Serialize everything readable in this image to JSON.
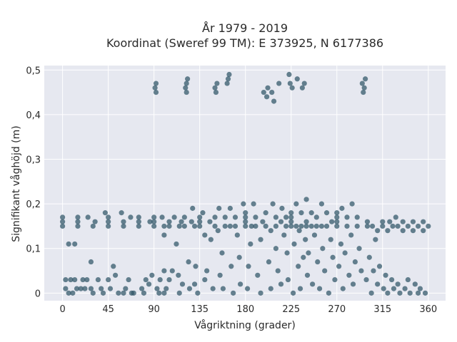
{
  "chart_data": {
    "type": "scatter",
    "title": "År 1979 - 2019",
    "subtitle": "Koordinat (Sweref 99 TM): E 373925, N 6177386",
    "xlabel": "Vågriktning (grader)",
    "ylabel": "Signifikant våghöjd (m)",
    "xlim": [
      -18,
      377
    ],
    "ylim": [
      -0.017,
      0.51
    ],
    "xticks": [
      0,
      45,
      90,
      135,
      180,
      225,
      270,
      315,
      360
    ],
    "xtick_labels": [
      "0",
      "45",
      "90",
      "135",
      "180",
      "225",
      "270",
      "315",
      "360"
    ],
    "yticks": [
      0,
      0.1,
      0.2,
      0.3,
      0.4,
      0.5
    ],
    "ytick_labels": [
      "0",
      "0,1",
      "0,2",
      "0,3",
      "0,4",
      "0,5"
    ],
    "grid": true,
    "marker_color": "#2f5467",
    "background_color": "#e6e8f0",
    "series": [
      {
        "points": [
          [
            0,
            0.15
          ],
          [
            0,
            0.16
          ],
          [
            0,
            0.17
          ],
          [
            3,
            0.01
          ],
          [
            3,
            0.03
          ],
          [
            6,
            0.0
          ],
          [
            6,
            0.11
          ],
          [
            8,
            0.03
          ],
          [
            10,
            0.0
          ],
          [
            12,
            0.03
          ],
          [
            12,
            0.11
          ],
          [
            14,
            0.01
          ],
          [
            15,
            0.15
          ],
          [
            15,
            0.16
          ],
          [
            15,
            0.17
          ],
          [
            18,
            0.01
          ],
          [
            20,
            0.03
          ],
          [
            22,
            0.01
          ],
          [
            24,
            0.03
          ],
          [
            25,
            0.17
          ],
          [
            28,
            0.07
          ],
          [
            28,
            0.01
          ],
          [
            30,
            0.0
          ],
          [
            30,
            0.15
          ],
          [
            32,
            0.16
          ],
          [
            35,
            0.03
          ],
          [
            38,
            0.01
          ],
          [
            40,
            0.0
          ],
          [
            42,
            0.18
          ],
          [
            45,
            0.03
          ],
          [
            45,
            0.15
          ],
          [
            45,
            0.16
          ],
          [
            45,
            0.17
          ],
          [
            47,
            0.01
          ],
          [
            50,
            0.06
          ],
          [
            52,
            0.04
          ],
          [
            55,
            0.0
          ],
          [
            58,
            0.18
          ],
          [
            60,
            0.15
          ],
          [
            60,
            0.16
          ],
          [
            60,
            0.0
          ],
          [
            62,
            0.01
          ],
          [
            65,
            0.03
          ],
          [
            67,
            0.17
          ],
          [
            68,
            0.0
          ],
          [
            70,
            0.0
          ],
          [
            75,
            0.15
          ],
          [
            75,
            0.16
          ],
          [
            75,
            0.17
          ],
          [
            78,
            0.01
          ],
          [
            80,
            0.0
          ],
          [
            82,
            0.03
          ],
          [
            85,
            0.02
          ],
          [
            86,
            0.16
          ],
          [
            88,
            0.04
          ],
          [
            90,
            0.15
          ],
          [
            90,
            0.16
          ],
          [
            90,
            0.17
          ],
          [
            91,
            0.46
          ],
          [
            92,
            0.45
          ],
          [
            92,
            0.47
          ],
          [
            93,
            0.01
          ],
          [
            95,
            0.0
          ],
          [
            96,
            0.03
          ],
          [
            98,
            0.17
          ],
          [
            100,
            0.15
          ],
          [
            100,
            0.13
          ],
          [
            100,
            0.05
          ],
          [
            100,
            0.0
          ],
          [
            102,
            0.01
          ],
          [
            105,
            0.16
          ],
          [
            105,
            0.15
          ],
          [
            105,
            0.03
          ],
          [
            108,
            0.05
          ],
          [
            110,
            0.17
          ],
          [
            112,
            0.11
          ],
          [
            114,
            0.04
          ],
          [
            115,
            0.15
          ],
          [
            115,
            0.0
          ],
          [
            117,
            0.16
          ],
          [
            118,
            0.02
          ],
          [
            120,
            0.15
          ],
          [
            120,
            0.17
          ],
          [
            121,
            0.46
          ],
          [
            122,
            0.45
          ],
          [
            122,
            0.47
          ],
          [
            123,
            0.48
          ],
          [
            124,
            0.07
          ],
          [
            125,
            0.01
          ],
          [
            127,
            0.16
          ],
          [
            128,
            0.19
          ],
          [
            130,
            0.15
          ],
          [
            130,
            0.02
          ],
          [
            131,
            0.06
          ],
          [
            133,
            0.0
          ],
          [
            135,
            0.15
          ],
          [
            135,
            0.16
          ],
          [
            135,
            0.17
          ],
          [
            138,
            0.18
          ],
          [
            140,
            0.13
          ],
          [
            140,
            0.03
          ],
          [
            142,
            0.05
          ],
          [
            145,
            0.16
          ],
          [
            146,
            0.12
          ],
          [
            148,
            0.01
          ],
          [
            150,
            0.15
          ],
          [
            150,
            0.17
          ],
          [
            150,
            0.46
          ],
          [
            151,
            0.45
          ],
          [
            152,
            0.47
          ],
          [
            153,
            0.14
          ],
          [
            154,
            0.19
          ],
          [
            155,
            0.04
          ],
          [
            157,
            0.09
          ],
          [
            158,
            0.01
          ],
          [
            160,
            0.15
          ],
          [
            160,
            0.17
          ],
          [
            162,
            0.47
          ],
          [
            163,
            0.48
          ],
          [
            164,
            0.49
          ],
          [
            165,
            0.15
          ],
          [
            165,
            0.19
          ],
          [
            166,
            0.06
          ],
          [
            168,
            0.0
          ],
          [
            170,
            0.15
          ],
          [
            170,
            0.17
          ],
          [
            172,
            0.13
          ],
          [
            174,
            0.08
          ],
          [
            175,
            0.02
          ],
          [
            178,
            0.2
          ],
          [
            180,
            0.15
          ],
          [
            180,
            0.16
          ],
          [
            180,
            0.17
          ],
          [
            180,
            0.18
          ],
          [
            182,
            0.01
          ],
          [
            183,
            0.06
          ],
          [
            185,
            0.11
          ],
          [
            186,
            0.15
          ],
          [
            188,
            0.2
          ],
          [
            190,
            0.15
          ],
          [
            190,
            0.17
          ],
          [
            192,
            0.04
          ],
          [
            195,
            0.12
          ],
          [
            195,
            0.0
          ],
          [
            197,
            0.16
          ],
          [
            198,
            0.45
          ],
          [
            200,
            0.15
          ],
          [
            200,
            0.18
          ],
          [
            201,
            0.44
          ],
          [
            202,
            0.46
          ],
          [
            203,
            0.07
          ],
          [
            205,
            0.01
          ],
          [
            205,
            0.14
          ],
          [
            206,
            0.45
          ],
          [
            207,
            0.2
          ],
          [
            208,
            0.43
          ],
          [
            210,
            0.15
          ],
          [
            210,
            0.17
          ],
          [
            210,
            0.1
          ],
          [
            212,
            0.05
          ],
          [
            213,
            0.47
          ],
          [
            215,
            0.16
          ],
          [
            215,
            0.02
          ],
          [
            216,
            0.19
          ],
          [
            218,
            0.13
          ],
          [
            220,
            0.15
          ],
          [
            220,
            0.17
          ],
          [
            221,
            0.09
          ],
          [
            222,
            0.03
          ],
          [
            223,
            0.49
          ],
          [
            224,
            0.47
          ],
          [
            225,
            0.15
          ],
          [
            225,
            0.16
          ],
          [
            225,
            0.17
          ],
          [
            225,
            0.18
          ],
          [
            226,
            0.46
          ],
          [
            227,
            0.0
          ],
          [
            228,
            0.11
          ],
          [
            230,
            0.15
          ],
          [
            230,
            0.2
          ],
          [
            231,
            0.48
          ],
          [
            232,
            0.06
          ],
          [
            233,
            0.14
          ],
          [
            234,
            0.01
          ],
          [
            235,
            0.15
          ],
          [
            235,
            0.18
          ],
          [
            236,
            0.46
          ],
          [
            237,
            0.08
          ],
          [
            238,
            0.47
          ],
          [
            239,
            0.12
          ],
          [
            240,
            0.15
          ],
          [
            240,
            0.16
          ],
          [
            240,
            0.21
          ],
          [
            241,
            0.04
          ],
          [
            242,
            0.09
          ],
          [
            245,
            0.15
          ],
          [
            245,
            0.18
          ],
          [
            246,
            0.02
          ],
          [
            248,
            0.13
          ],
          [
            250,
            0.15
          ],
          [
            250,
            0.17
          ],
          [
            251,
            0.07
          ],
          [
            253,
            0.01
          ],
          [
            255,
            0.15
          ],
          [
            255,
            0.2
          ],
          [
            256,
            0.1
          ],
          [
            258,
            0.05
          ],
          [
            260,
            0.15
          ],
          [
            260,
            0.18
          ],
          [
            262,
            0.0
          ],
          [
            264,
            0.12
          ],
          [
            265,
            0.16
          ],
          [
            266,
            0.08
          ],
          [
            268,
            0.03
          ],
          [
            270,
            0.15
          ],
          [
            270,
            0.16
          ],
          [
            270,
            0.17
          ],
          [
            270,
            0.18
          ],
          [
            272,
            0.06
          ],
          [
            274,
            0.11
          ],
          [
            275,
            0.19
          ],
          [
            276,
            0.01
          ],
          [
            278,
            0.09
          ],
          [
            280,
            0.15
          ],
          [
            280,
            0.17
          ],
          [
            282,
            0.04
          ],
          [
            284,
            0.13
          ],
          [
            285,
            0.2
          ],
          [
            286,
            0.02
          ],
          [
            288,
            0.07
          ],
          [
            290,
            0.15
          ],
          [
            290,
            0.17
          ],
          [
            292,
            0.1
          ],
          [
            294,
            0.05
          ],
          [
            295,
            0.47
          ],
          [
            296,
            0.45
          ],
          [
            297,
            0.46
          ],
          [
            298,
            0.48
          ],
          [
            299,
            0.03
          ],
          [
            300,
            0.15
          ],
          [
            300,
            0.16
          ],
          [
            302,
            0.08
          ],
          [
            304,
            0.0
          ],
          [
            305,
            0.15
          ],
          [
            306,
            0.05
          ],
          [
            308,
            0.12
          ],
          [
            310,
            0.14
          ],
          [
            310,
            0.02
          ],
          [
            312,
            0.06
          ],
          [
            315,
            0.15
          ],
          [
            315,
            0.16
          ],
          [
            316,
            0.01
          ],
          [
            318,
            0.04
          ],
          [
            320,
            0.14
          ],
          [
            320,
            0.0
          ],
          [
            322,
            0.16
          ],
          [
            324,
            0.03
          ],
          [
            325,
            0.15
          ],
          [
            326,
            0.01
          ],
          [
            328,
            0.17
          ],
          [
            330,
            0.15
          ],
          [
            330,
            0.02
          ],
          [
            332,
            0.0
          ],
          [
            335,
            0.14
          ],
          [
            335,
            0.16
          ],
          [
            337,
            0.01
          ],
          [
            340,
            0.15
          ],
          [
            340,
            0.03
          ],
          [
            342,
            0.0
          ],
          [
            345,
            0.14
          ],
          [
            345,
            0.16
          ],
          [
            347,
            0.02
          ],
          [
            350,
            0.15
          ],
          [
            350,
            0.0
          ],
          [
            352,
            0.01
          ],
          [
            355,
            0.14
          ],
          [
            355,
            0.16
          ],
          [
            357,
            0.0
          ],
          [
            360,
            0.15
          ]
        ]
      }
    ]
  }
}
